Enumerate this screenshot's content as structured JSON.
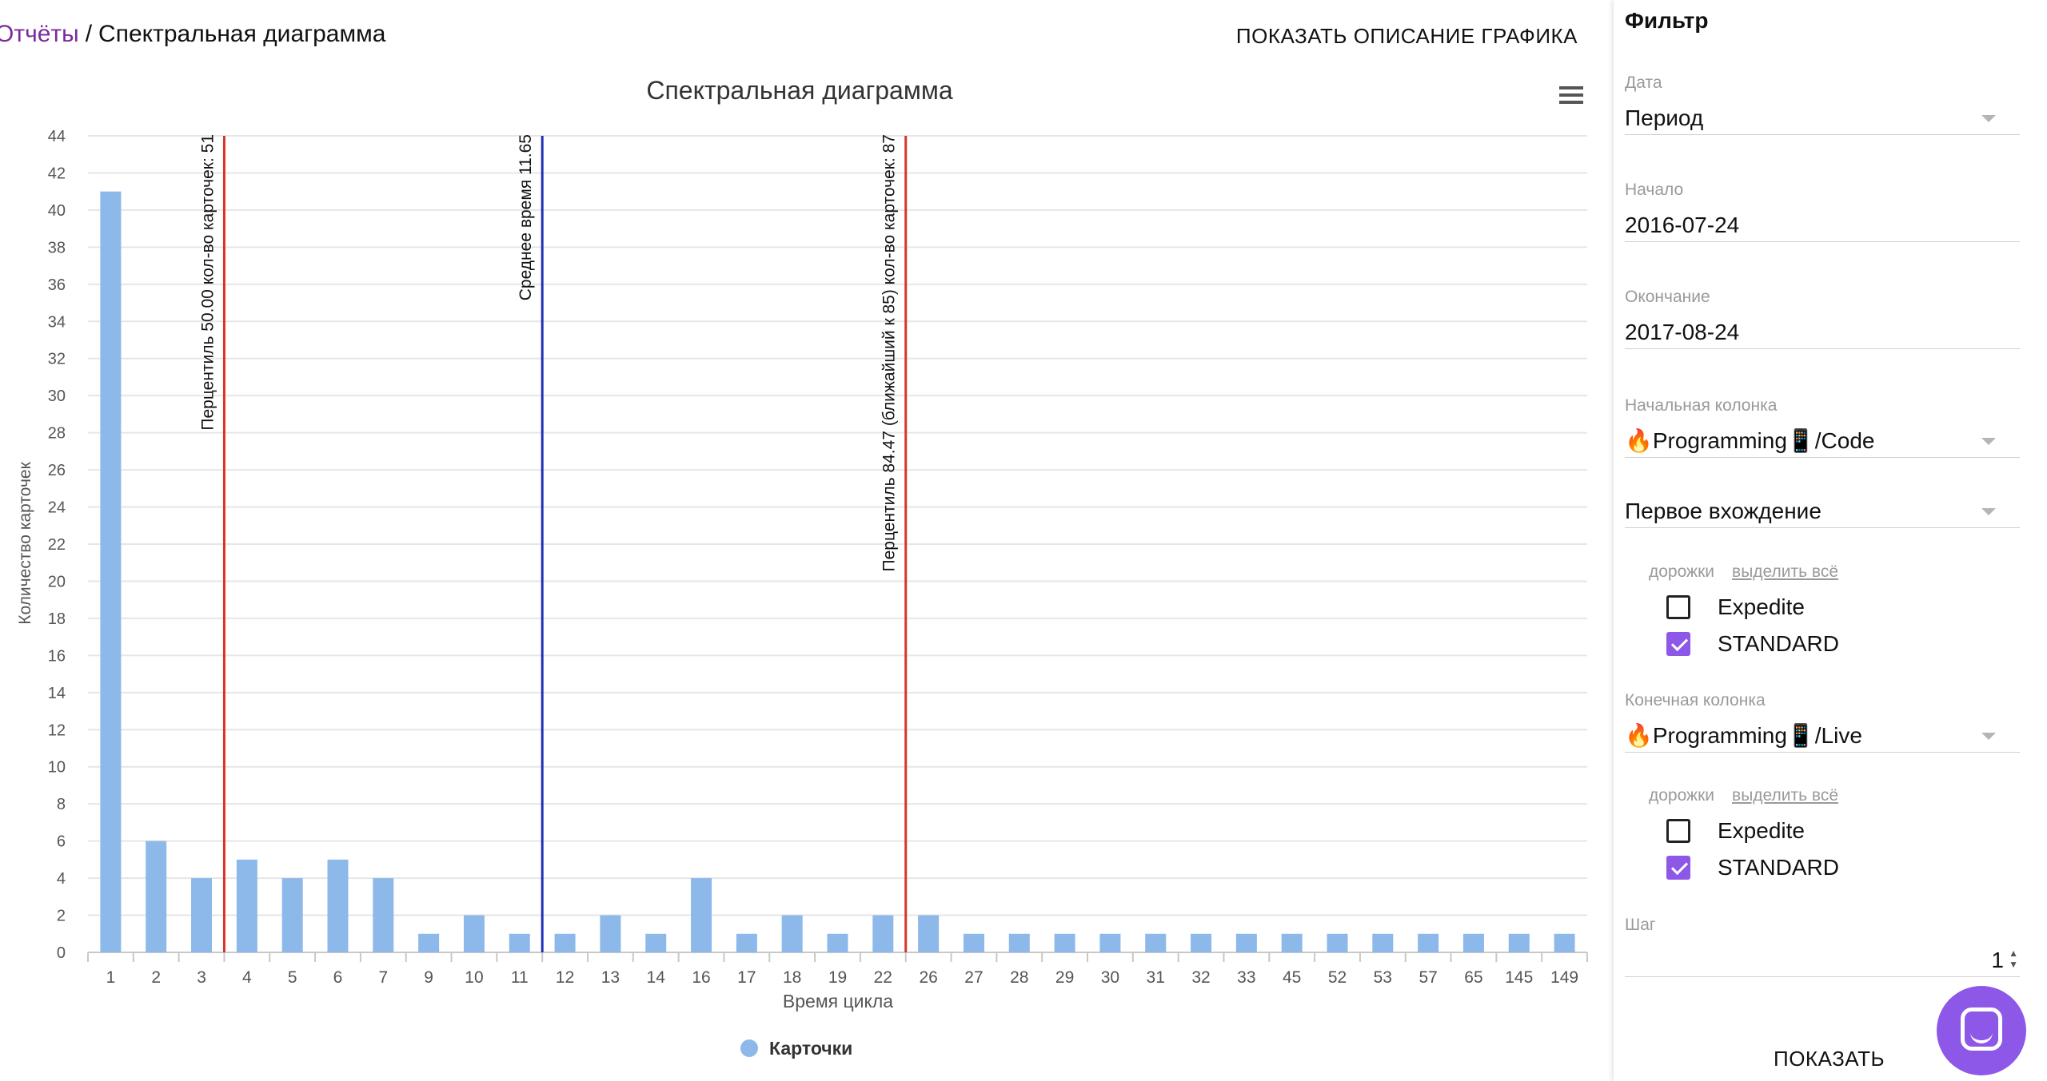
{
  "breadcrumb": {
    "root": "Отчёты",
    "separator": "/",
    "current": "Спектральная диаграмма"
  },
  "header": {
    "show_description": "ПОКАЗАТЬ ОПИСАНИЕ ГРАФИКА"
  },
  "chart_data": {
    "type": "bar",
    "title": "Спектральная диаграмма",
    "xlabel": "Время цикла",
    "ylabel": "Количество карточек",
    "ylim": [
      0,
      44
    ],
    "yticks": [
      0,
      2,
      4,
      6,
      8,
      10,
      12,
      14,
      16,
      18,
      20,
      22,
      24,
      26,
      28,
      30,
      32,
      34,
      36,
      38,
      40,
      42,
      44
    ],
    "grid": true,
    "legend_position": "bottom-center",
    "categories": [
      "1",
      "2",
      "3",
      "4",
      "5",
      "6",
      "7",
      "9",
      "10",
      "11",
      "12",
      "13",
      "14",
      "16",
      "17",
      "18",
      "19",
      "22",
      "26",
      "27",
      "28",
      "29",
      "30",
      "31",
      "32",
      "33",
      "45",
      "52",
      "53",
      "57",
      "65",
      "145",
      "149"
    ],
    "series": [
      {
        "name": "Карточки",
        "color": "#8db8ea",
        "values": [
          41,
          6,
          4,
          5,
          4,
          5,
          4,
          1,
          2,
          1,
          1,
          2,
          1,
          4,
          1,
          2,
          1,
          2,
          2,
          1,
          1,
          1,
          1,
          1,
          1,
          1,
          1,
          1,
          1,
          1,
          1,
          1,
          1
        ]
      }
    ],
    "reference_lines": [
      {
        "after_category": "3",
        "color": "#d9352b",
        "label": "Перцентиль 50.00 кол-во карточек: 51"
      },
      {
        "after_category": "11",
        "color": "#1f2fb8",
        "label": "Среднее время 11.65"
      },
      {
        "after_category": "22",
        "color": "#d9352b",
        "label": "Перцентиль 84.47 (ближайший к 85) кол-во карточек: 87"
      }
    ]
  },
  "filter": {
    "title": "Фильтр",
    "date": {
      "label": "Дата",
      "value": "Период"
    },
    "start": {
      "label": "Начало",
      "value": "2016-07-24"
    },
    "end": {
      "label": "Окончание",
      "value": "2017-08-24"
    },
    "start_column": {
      "label": "Начальная колонка",
      "value": "🔥Programming📱/Code"
    },
    "occurrence": {
      "value": "Первое вхождение"
    },
    "lanes1": {
      "label": "дорожки",
      "select_all": "выделить всё",
      "items": [
        {
          "label": "Expedite",
          "checked": false
        },
        {
          "label": "STANDARD",
          "checked": true
        }
      ]
    },
    "end_column": {
      "label": "Конечная колонка",
      "value": "🔥Programming📱/Live"
    },
    "lanes2": {
      "label": "дорожки",
      "select_all": "выделить всё",
      "items": [
        {
          "label": "Expedite",
          "checked": false
        },
        {
          "label": "STANDARD",
          "checked": true
        }
      ]
    },
    "step": {
      "label": "Шаг",
      "value": "1"
    },
    "submit": "ПОКАЗАТЬ"
  },
  "icons": {
    "menu": "hamburger-menu-icon",
    "chat": "chat-bubble-icon"
  },
  "colors": {
    "accent": "#8d57e8",
    "link": "#7b2c9c",
    "bar": "#8db8ea"
  }
}
